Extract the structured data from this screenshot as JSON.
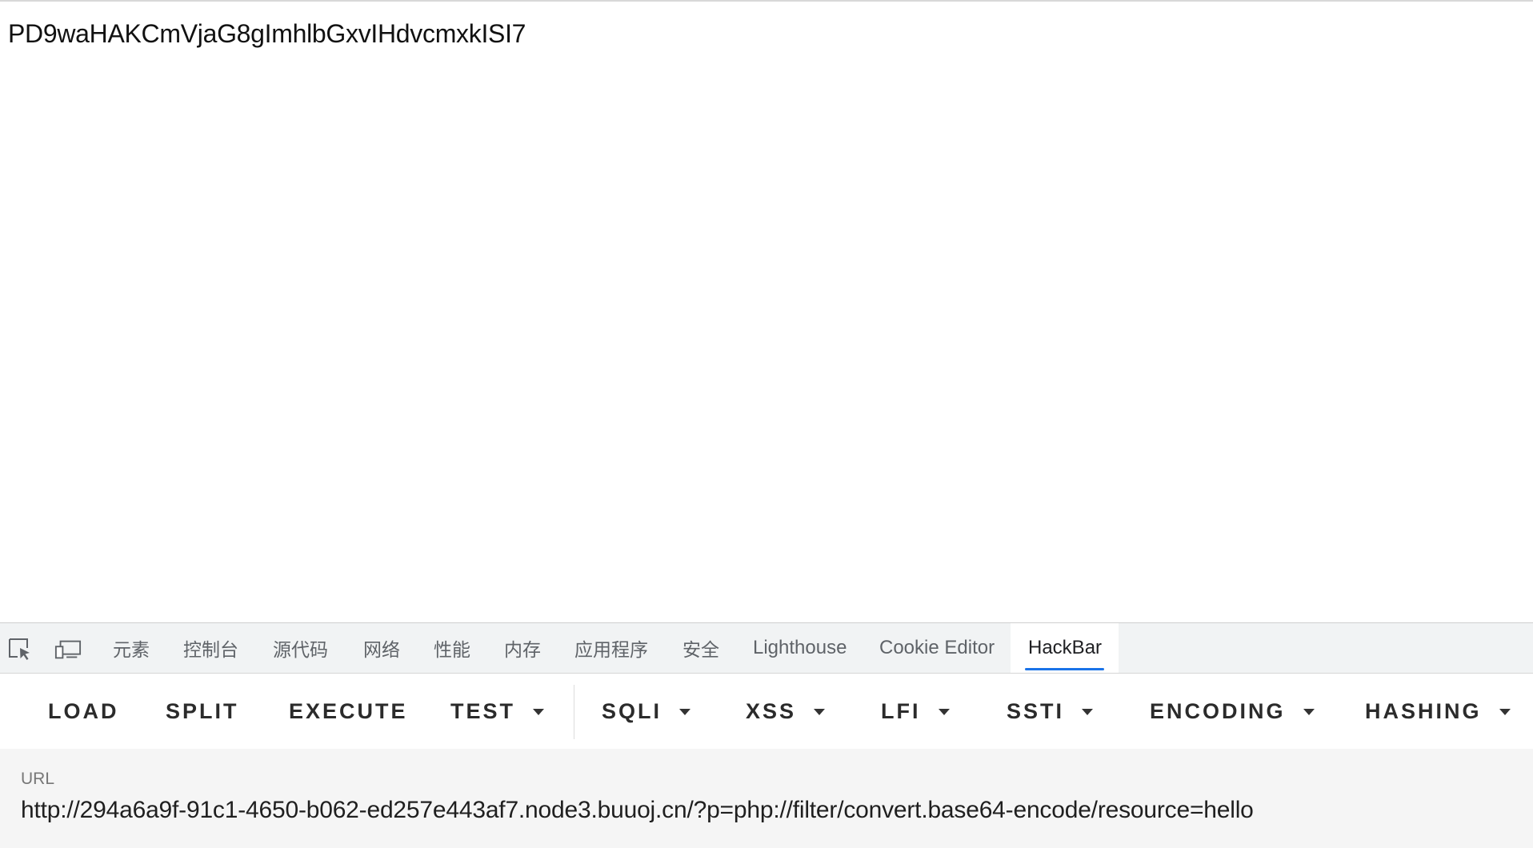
{
  "page": {
    "body_text": "PD9waHAKCmVjaG8gImhlbGxvIHdvcmxkISI7"
  },
  "devtools": {
    "tool_icons": [
      "inspect-element-icon",
      "device-toolbar-icon"
    ],
    "tabs": [
      {
        "label": "元素"
      },
      {
        "label": "控制台"
      },
      {
        "label": "源代码"
      },
      {
        "label": "网络"
      },
      {
        "label": "性能"
      },
      {
        "label": "内存"
      },
      {
        "label": "应用程序"
      },
      {
        "label": "安全"
      },
      {
        "label": "Lighthouse"
      },
      {
        "label": "Cookie Editor"
      },
      {
        "label": "HackBar",
        "active": true
      }
    ],
    "accent_color": "#1a73e8"
  },
  "hackbar": {
    "buttons": [
      {
        "label": "LOAD",
        "dropdown": false
      },
      {
        "label": "SPLIT",
        "dropdown": false
      },
      {
        "label": "EXECUTE",
        "dropdown": false
      },
      {
        "label": "TEST",
        "dropdown": true
      },
      {
        "label": "SQLI",
        "dropdown": true
      },
      {
        "label": "XSS",
        "dropdown": true
      },
      {
        "label": "LFI",
        "dropdown": true
      },
      {
        "label": "SSTI",
        "dropdown": true
      },
      {
        "label": "ENCODING",
        "dropdown": true
      },
      {
        "label": "HASHING",
        "dropdown": true
      }
    ],
    "url_label": "URL",
    "url_value": "http://294a6a9f-91c1-4650-b062-ed257e443af7.node3.buuoj.cn/?p=php://filter/convert.base64-encode/resource=hello"
  }
}
